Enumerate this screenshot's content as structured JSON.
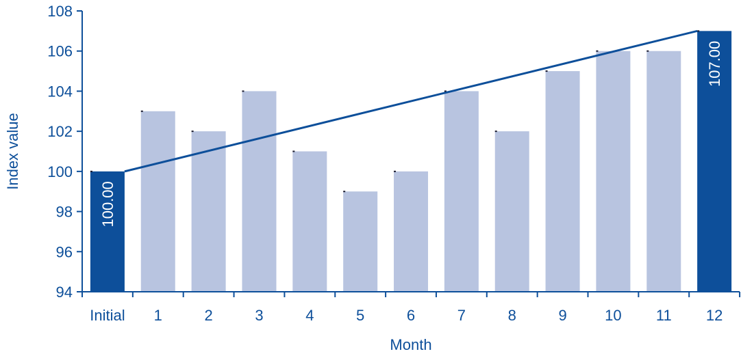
{
  "chart_data": {
    "type": "bar",
    "title": "",
    "xlabel": "Month",
    "ylabel": "Index value",
    "ylim": [
      94,
      108
    ],
    "yticks": [
      94,
      96,
      98,
      100,
      102,
      104,
      106,
      108
    ],
    "categories": [
      "Initial",
      "1",
      "2",
      "3",
      "4",
      "5",
      "6",
      "7",
      "8",
      "9",
      "10",
      "11",
      "12"
    ],
    "values": [
      100,
      103,
      102,
      104,
      101,
      99,
      100,
      104,
      102,
      105,
      106,
      106,
      107
    ],
    "highlighted": [
      "Initial",
      "12"
    ],
    "data_labels": {
      "Initial": "100.00",
      "12": "107.00"
    },
    "trend_line": {
      "from": {
        "category": "Initial",
        "value": 100
      },
      "to": {
        "category": "12",
        "value": 107
      }
    },
    "grid": false,
    "colors": {
      "bar": "#b8c4e0",
      "bar_highlight": "#0d4f9a",
      "axis": "#0d4f9a",
      "text": "#0d4f9a",
      "trend_line": "#0d4f9a",
      "data_label": "#ffffff"
    }
  }
}
